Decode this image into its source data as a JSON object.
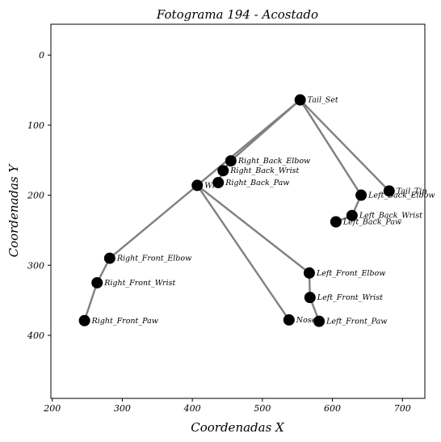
{
  "chart_data": {
    "type": "scatter",
    "title": "Fotograma 194 - Acostado",
    "xlabel": "Coordenadas X",
    "ylabel": "Coordenadas Y",
    "xlim": [
      198,
      732
    ],
    "ylim": [
      490,
      -44
    ],
    "y_inverted": true,
    "xticks": [
      200,
      300,
      400,
      500,
      600,
      700
    ],
    "yticks": [
      0,
      100,
      200,
      300,
      400
    ],
    "grid": false,
    "points": [
      {
        "name": "Tail_Set",
        "x": 554,
        "y": 64
      },
      {
        "name": "Tail_Tip",
        "x": 681,
        "y": 194
      },
      {
        "name": "Left_Back_Elbow",
        "x": 641,
        "y": 200
      },
      {
        "name": "Left_Back_Wrist",
        "x": 628,
        "y": 229
      },
      {
        "name": "Left_Back_Paw",
        "x": 605,
        "y": 238
      },
      {
        "name": "Right_Back_Elbow",
        "x": 455,
        "y": 151
      },
      {
        "name": "Right_Back_Wrist",
        "x": 444,
        "y": 165
      },
      {
        "name": "Right_Back_Paw",
        "x": 437,
        "y": 182
      },
      {
        "name": "Withers",
        "display": "Wi",
        "x": 407,
        "y": 186
      },
      {
        "name": "Right_Front_Elbow",
        "x": 282,
        "y": 290
      },
      {
        "name": "Right_Front_Wrist",
        "x": 264,
        "y": 325
      },
      {
        "name": "Right_Front_Paw",
        "x": 246,
        "y": 379
      },
      {
        "name": "Left_Front_Elbow",
        "x": 567,
        "y": 311
      },
      {
        "name": "Left_Front_Wrist",
        "x": 568,
        "y": 346
      },
      {
        "name": "Left_Front_Paw",
        "x": 581,
        "y": 380
      },
      {
        "name": "Nose",
        "x": 538,
        "y": 378
      }
    ],
    "connections": [
      [
        "Tail_Set",
        "Tail_Tip"
      ],
      [
        "Tail_Set",
        "Left_Back_Elbow"
      ],
      [
        "Left_Back_Elbow",
        "Left_Back_Wrist"
      ],
      [
        "Left_Back_Wrist",
        "Left_Back_Paw"
      ],
      [
        "Tail_Set",
        "Right_Back_Elbow"
      ],
      [
        "Right_Back_Elbow",
        "Right_Back_Wrist"
      ],
      [
        "Right_Back_Wrist",
        "Right_Back_Paw"
      ],
      [
        "Tail_Set",
        "Withers"
      ],
      [
        "Withers",
        "Right_Front_Elbow"
      ],
      [
        "Right_Front_Elbow",
        "Right_Front_Wrist"
      ],
      [
        "Right_Front_Wrist",
        "Right_Front_Paw"
      ],
      [
        "Withers",
        "Left_Front_Elbow"
      ],
      [
        "Left_Front_Elbow",
        "Left_Front_Wrist"
      ],
      [
        "Left_Front_Wrist",
        "Left_Front_Paw"
      ],
      [
        "Withers",
        "Nose"
      ]
    ],
    "colors": {
      "bone": "#808080",
      "joint": "#000000"
    }
  }
}
